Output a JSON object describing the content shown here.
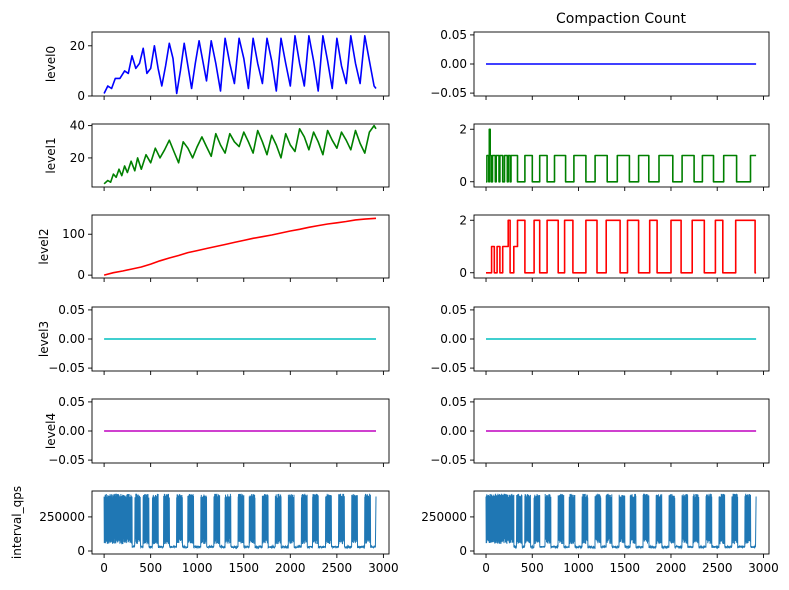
{
  "figure": {
    "title": "Compaction Count"
  },
  "chart_data": {
    "type": "line",
    "title": "Compaction Count",
    "xlim": [
      -130,
      3060
    ],
    "xticks": [
      0,
      500,
      1000,
      1500,
      2000,
      2500,
      3000
    ],
    "xtick_labels": [
      "0",
      "500",
      "1000",
      "1500",
      "2000",
      "2500",
      "3000"
    ],
    "rows": [
      {
        "ylabel": "level0",
        "color": "#0000ff",
        "left": {
          "ylim": [
            0,
            25.5
          ],
          "yticks": [
            0,
            20
          ],
          "ytick_labels": [
            "0",
            "20"
          ],
          "x": [
            0,
            40,
            80,
            120,
            170,
            220,
            260,
            300,
            340,
            380,
            420,
            460,
            500,
            540,
            580,
            620,
            660,
            700,
            740,
            780,
            820,
            860,
            900,
            940,
            980,
            1020,
            1060,
            1100,
            1150,
            1200,
            1250,
            1300,
            1350,
            1400,
            1450,
            1500,
            1550,
            1600,
            1650,
            1700,
            1750,
            1800,
            1850,
            1900,
            1950,
            2000,
            2050,
            2100,
            2150,
            2200,
            2250,
            2300,
            2350,
            2400,
            2450,
            2500,
            2550,
            2600,
            2650,
            2700,
            2750,
            2800,
            2850,
            2900,
            2920
          ],
          "y": [
            1,
            4,
            3,
            7,
            7,
            10,
            9,
            16,
            11,
            13,
            19,
            9,
            11,
            20,
            11,
            4,
            12,
            21,
            15,
            1,
            10,
            21,
            12,
            3,
            13,
            22,
            14,
            6,
            22,
            13,
            2,
            23,
            13,
            5,
            23,
            15,
            3,
            23,
            13,
            5,
            23,
            14,
            2,
            23,
            13,
            4,
            24,
            13,
            4,
            24,
            14,
            2,
            24,
            14,
            3,
            23,
            12,
            5,
            24,
            13,
            5,
            24,
            14,
            4,
            3
          ]
        },
        "right": {
          "ylim": [
            -0.055,
            0.055
          ],
          "yticks": [
            -0.05,
            0.0,
            0.05
          ],
          "ytick_labels": [
            "−0.05",
            "0.00",
            "0.05"
          ],
          "x": [
            0,
            2920
          ],
          "y": [
            0,
            0
          ]
        }
      },
      {
        "ylabel": "level1",
        "color": "#008000",
        "left": {
          "ylim": [
            2,
            41
          ],
          "yticks": [
            20,
            40
          ],
          "ytick_labels": [
            "20",
            "40"
          ],
          "x": [
            0,
            40,
            70,
            100,
            130,
            160,
            190,
            220,
            250,
            290,
            330,
            360,
            400,
            450,
            500,
            550,
            600,
            650,
            700,
            750,
            800,
            850,
            900,
            950,
            1000,
            1050,
            1100,
            1150,
            1200,
            1250,
            1300,
            1350,
            1400,
            1450,
            1500,
            1550,
            1600,
            1650,
            1700,
            1750,
            1800,
            1850,
            1900,
            1950,
            2000,
            2050,
            2100,
            2150,
            2200,
            2250,
            2300,
            2350,
            2400,
            2450,
            2500,
            2550,
            2600,
            2650,
            2700,
            2750,
            2800,
            2850,
            2900,
            2920
          ],
          "y": [
            4,
            6,
            5,
            10,
            8,
            13,
            9,
            15,
            11,
            18,
            12,
            20,
            13,
            22,
            17,
            26,
            20,
            25,
            31,
            24,
            17,
            30,
            26,
            20,
            27,
            33,
            27,
            21,
            35,
            28,
            23,
            35,
            30,
            27,
            36,
            30,
            23,
            37,
            30,
            22,
            34,
            28,
            20,
            35,
            28,
            24,
            38,
            33,
            25,
            36,
            30,
            22,
            37,
            31,
            26,
            36,
            31,
            25,
            37,
            29,
            23,
            36,
            40,
            38
          ]
        },
        "right": {
          "ylim": [
            -0.2,
            2.2
          ],
          "yticks": [
            0,
            2
          ],
          "ytick_labels": [
            "0",
            "2"
          ],
          "x": [
            0,
            10,
            10,
            30,
            30,
            35,
            35,
            45,
            45,
            55,
            55,
            70,
            70,
            100,
            100,
            110,
            110,
            140,
            140,
            150,
            150,
            180,
            180,
            200,
            200,
            230,
            230,
            240,
            240,
            260,
            260,
            270,
            270,
            340,
            340,
            420,
            420,
            500,
            500,
            580,
            580,
            660,
            660,
            740,
            740,
            860,
            860,
            950,
            950,
            1080,
            1080,
            1180,
            1180,
            1310,
            1310,
            1420,
            1420,
            1550,
            1550,
            1650,
            1650,
            1760,
            1760,
            1870,
            1870,
            2020,
            2020,
            2120,
            2120,
            2250,
            2250,
            2340,
            2340,
            2460,
            2460,
            2570,
            2570,
            2710,
            2710,
            2860,
            2860,
            2920
          ],
          "y": [
            0,
            0,
            1,
            1,
            0,
            0,
            2,
            2,
            1,
            1,
            0,
            0,
            1,
            1,
            0,
            0,
            1,
            1,
            0,
            0,
            1,
            1,
            0,
            0,
            1,
            1,
            0,
            0,
            1,
            1,
            0,
            0,
            1,
            1,
            0,
            0,
            1,
            1,
            0,
            0,
            1,
            1,
            0,
            0,
            1,
            1,
            0,
            0,
            1,
            1,
            0,
            0,
            1,
            1,
            0,
            0,
            1,
            1,
            0,
            0,
            1,
            1,
            0,
            0,
            1,
            1,
            0,
            0,
            1,
            1,
            0,
            0,
            1,
            1,
            0,
            0,
            1,
            1,
            0,
            0,
            1,
            1
          ]
        }
      },
      {
        "ylabel": "level2",
        "color": "#ff0000",
        "left": {
          "ylim": [
            -7,
            147
          ],
          "yticks": [
            0,
            100
          ],
          "ytick_labels": [
            "0",
            "100"
          ],
          "x": [
            0,
            100,
            200,
            300,
            400,
            500,
            600,
            700,
            800,
            900,
            1000,
            1100,
            1200,
            1300,
            1400,
            1500,
            1600,
            1700,
            1800,
            1900,
            2000,
            2100,
            2200,
            2300,
            2400,
            2500,
            2600,
            2700,
            2800,
            2920
          ],
          "y": [
            0,
            6,
            10,
            15,
            20,
            27,
            35,
            42,
            48,
            55,
            60,
            65,
            70,
            75,
            80,
            85,
            90,
            94,
            98,
            103,
            108,
            112,
            117,
            121,
            125,
            128,
            131,
            135,
            137,
            139
          ]
        },
        "right": {
          "ylim": [
            -0.2,
            2.2
          ],
          "yticks": [
            0,
            2
          ],
          "ytick_labels": [
            "0",
            "2"
          ],
          "x": [
            0,
            60,
            60,
            90,
            90,
            120,
            120,
            150,
            150,
            180,
            180,
            240,
            240,
            260,
            260,
            300,
            300,
            340,
            340,
            420,
            420,
            520,
            520,
            580,
            580,
            660,
            660,
            780,
            780,
            850,
            850,
            940,
            940,
            1080,
            1080,
            1200,
            1200,
            1300,
            1300,
            1450,
            1450,
            1530,
            1530,
            1650,
            1650,
            1770,
            1770,
            1850,
            1850,
            2000,
            2000,
            2110,
            2110,
            2230,
            2230,
            2360,
            2360,
            2480,
            2480,
            2560,
            2560,
            2700,
            2700,
            2910,
            2910,
            2920
          ],
          "y": [
            0,
            0,
            1,
            1,
            0,
            0,
            1,
            1,
            0,
            0,
            1,
            1,
            2,
            2,
            0,
            0,
            1,
            1,
            2,
            2,
            0,
            0,
            2,
            2,
            0,
            0,
            2,
            2,
            0,
            0,
            2,
            2,
            0,
            0,
            2,
            2,
            0,
            0,
            2,
            2,
            0,
            0,
            2,
            2,
            0,
            0,
            2,
            2,
            0,
            0,
            2,
            2,
            0,
            0,
            2,
            2,
            0,
            0,
            2,
            2,
            0,
            0,
            2,
            2,
            0,
            0
          ]
        }
      },
      {
        "ylabel": "level3",
        "color": "#00bfbf",
        "left": {
          "ylim": [
            -0.055,
            0.055
          ],
          "yticks": [
            -0.05,
            0.0,
            0.05
          ],
          "ytick_labels": [
            "−0.05",
            "0.00",
            "0.05"
          ],
          "x": [
            0,
            2920
          ],
          "y": [
            0,
            0
          ]
        },
        "right": {
          "ylim": [
            -0.055,
            0.055
          ],
          "yticks": [
            -0.05,
            0.0,
            0.05
          ],
          "ytick_labels": [
            "−0.05",
            "0.00",
            "0.05"
          ],
          "x": [
            0,
            2920
          ],
          "y": [
            0,
            0
          ]
        }
      },
      {
        "ylabel": "level4",
        "color": "#bf00bf",
        "left": {
          "ylim": [
            -0.055,
            0.055
          ],
          "yticks": [
            -0.05,
            0.0,
            0.05
          ],
          "ytick_labels": [
            "−0.05",
            "0.00",
            "0.05"
          ],
          "x": [
            0,
            2920
          ],
          "y": [
            0,
            0
          ]
        },
        "right": {
          "ylim": [
            -0.055,
            0.055
          ],
          "yticks": [
            -0.05,
            0.0,
            0.05
          ],
          "ytick_labels": [
            "−0.05",
            "0.00",
            "0.05"
          ],
          "x": [
            0,
            2920
          ],
          "y": [
            0,
            0
          ]
        }
      },
      {
        "ylabel": "interval_qps",
        "color": "#1f77b4",
        "left": {
          "ylim": [
            -22000,
            440000
          ],
          "yticks": [
            0,
            250000
          ],
          "ytick_labels": [
            "0",
            "250000"
          ],
          "busy_intervals": [
            [
              0,
              300
            ],
            [
              330,
              390
            ],
            [
              420,
              480
            ],
            [
              520,
              580
            ],
            [
              640,
              700
            ],
            [
              780,
              840
            ],
            [
              900,
              960
            ],
            [
              1040,
              1100
            ],
            [
              1180,
              1240
            ],
            [
              1300,
              1360
            ],
            [
              1440,
              1500
            ],
            [
              1560,
              1620
            ],
            [
              1700,
              1760
            ],
            [
              1840,
              1900
            ],
            [
              1980,
              2040
            ],
            [
              2120,
              2180
            ],
            [
              2240,
              2300
            ],
            [
              2380,
              2440
            ],
            [
              2520,
              2580
            ],
            [
              2660,
              2720
            ],
            [
              2800,
              2860
            ]
          ],
          "busy_range": [
            50000,
            420000
          ],
          "idle_level": 30000,
          "end_spike": [
            2920,
            400000
          ]
        },
        "right": {
          "ylim": [
            -22000,
            440000
          ],
          "yticks": [
            0,
            250000
          ],
          "ytick_labels": [
            "0",
            "250000"
          ],
          "busy_intervals": [
            [
              0,
              300
            ],
            [
              330,
              390
            ],
            [
              420,
              480
            ],
            [
              520,
              580
            ],
            [
              640,
              700
            ],
            [
              780,
              840
            ],
            [
              900,
              960
            ],
            [
              1040,
              1100
            ],
            [
              1180,
              1240
            ],
            [
              1300,
              1360
            ],
            [
              1440,
              1500
            ],
            [
              1560,
              1620
            ],
            [
              1700,
              1760
            ],
            [
              1840,
              1900
            ],
            [
              1980,
              2040
            ],
            [
              2120,
              2180
            ],
            [
              2240,
              2300
            ],
            [
              2380,
              2440
            ],
            [
              2520,
              2580
            ],
            [
              2660,
              2720
            ],
            [
              2800,
              2860
            ]
          ],
          "busy_range": [
            50000,
            420000
          ],
          "idle_level": 30000,
          "end_spike": [
            2920,
            400000
          ]
        }
      }
    ]
  }
}
